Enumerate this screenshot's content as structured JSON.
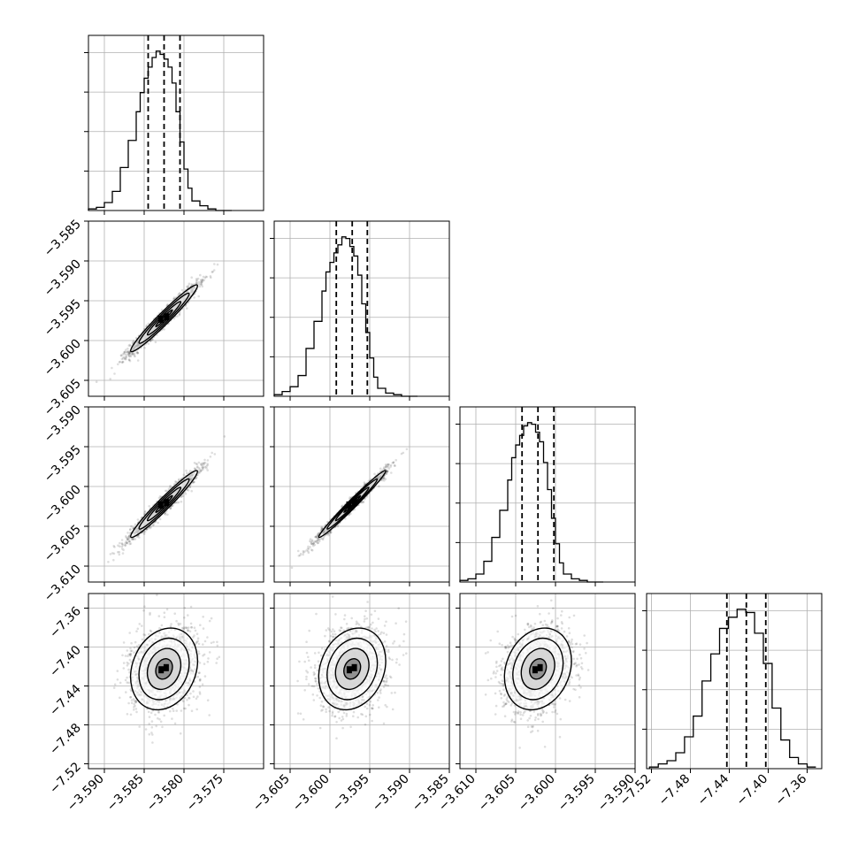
{
  "chart_data": {
    "type": "corner",
    "parameters": [
      {
        "range": [
          -3.592,
          -3.57
        ],
        "ticks": [
          -3.59,
          -3.585,
          -3.58,
          -3.575
        ],
        "tick_labels": [
          "−3.590",
          "−3.585",
          "−3.580",
          "−3.575"
        ],
        "quantiles": [
          -3.5845,
          -3.5825,
          -3.5805
        ],
        "hist_edges": [
          -3.592,
          -3.591,
          -3.59,
          -3.589,
          -3.588,
          -3.587,
          -3.586,
          -3.5855,
          -3.585,
          -3.5845,
          -3.584,
          -3.5835,
          -3.583,
          -3.5825,
          -3.582,
          -3.5815,
          -3.581,
          -3.5805,
          -3.58,
          -3.5795,
          -3.579,
          -3.578,
          -3.577,
          -3.576,
          -3.575,
          -3.574
        ],
        "hist_counts": [
          0.01,
          0.02,
          0.05,
          0.12,
          0.27,
          0.44,
          0.62,
          0.74,
          0.83,
          0.9,
          0.96,
          1.0,
          0.98,
          0.95,
          0.9,
          0.8,
          0.62,
          0.43,
          0.26,
          0.14,
          0.06,
          0.03,
          0.01,
          0.0,
          0.0
        ]
      },
      {
        "range": [
          -3.607,
          -3.585
        ],
        "ticks": [
          -3.605,
          -3.6,
          -3.595,
          -3.59,
          -3.585
        ],
        "tick_labels": [
          "−3.605",
          "−3.600",
          "−3.595",
          "−3.590",
          "−3.585"
        ],
        "y_tick_labels": [
          "−3.585",
          "−3.590",
          "−3.595",
          "−3.600",
          "−3.605"
        ],
        "quantiles": [
          -3.5992,
          -3.5972,
          -3.5953
        ],
        "hist_edges": [
          -3.607,
          -3.606,
          -3.605,
          -3.604,
          -3.603,
          -3.602,
          -3.601,
          -3.6005,
          -3.6,
          -3.5995,
          -3.599,
          -3.5985,
          -3.598,
          -3.5975,
          -3.597,
          -3.5965,
          -3.596,
          -3.5955,
          -3.595,
          -3.5945,
          -3.594,
          -3.593,
          -3.592,
          -3.591,
          -3.59,
          -3.589
        ],
        "hist_counts": [
          0.01,
          0.03,
          0.06,
          0.13,
          0.3,
          0.47,
          0.66,
          0.78,
          0.84,
          0.9,
          0.95,
          1.0,
          0.99,
          0.94,
          0.88,
          0.76,
          0.58,
          0.4,
          0.24,
          0.12,
          0.05,
          0.02,
          0.01,
          0.0,
          0.0
        ]
      },
      {
        "range": [
          -3.612,
          -3.59
        ],
        "ticks": [
          -3.61,
          -3.605,
          -3.6,
          -3.595,
          -3.59
        ],
        "tick_labels": [
          "−3.610",
          "−3.605",
          "−3.600",
          "−3.595",
          "−3.590"
        ],
        "y_tick_labels": [
          "−3.590",
          "−3.595",
          "−3.600",
          "−3.605",
          "−3.610"
        ],
        "quantiles": [
          -3.6042,
          -3.6022,
          -3.6002
        ],
        "hist_edges": [
          -3.612,
          -3.611,
          -3.61,
          -3.609,
          -3.608,
          -3.607,
          -3.606,
          -3.6055,
          -3.605,
          -3.6045,
          -3.604,
          -3.6035,
          -3.603,
          -3.6025,
          -3.602,
          -3.6015,
          -3.601,
          -3.6005,
          -3.6,
          -3.5995,
          -3.599,
          -3.598,
          -3.597,
          -3.596,
          -3.595,
          -3.594
        ],
        "hist_counts": [
          0.01,
          0.02,
          0.05,
          0.13,
          0.28,
          0.45,
          0.64,
          0.78,
          0.86,
          0.92,
          0.98,
          1.0,
          0.99,
          0.94,
          0.88,
          0.75,
          0.58,
          0.4,
          0.24,
          0.12,
          0.05,
          0.02,
          0.01,
          0.0,
          0.0
        ]
      },
      {
        "range": [
          -7.525,
          -7.345
        ],
        "ticks": [
          -7.52,
          -7.48,
          -7.44,
          -7.4,
          -7.36
        ],
        "tick_labels": [
          "−7.52",
          "−7.48",
          "−7.44",
          "−7.40",
          "−7.36"
        ],
        "y_tick_labels": [
          "−7.36",
          "−7.40",
          "−7.44",
          "−7.48",
          "−7.52"
        ],
        "quantiles": [
          -7.4425,
          -7.4225,
          -7.4025
        ],
        "hist_edges": [
          -7.522,
          -7.513,
          -7.504,
          -7.495,
          -7.486,
          -7.477,
          -7.468,
          -7.459,
          -7.45,
          -7.441,
          -7.432,
          -7.423,
          -7.414,
          -7.405,
          -7.396,
          -7.387,
          -7.378,
          -7.369,
          -7.36,
          -7.351
        ],
        "hist_counts": [
          0.01,
          0.03,
          0.05,
          0.1,
          0.2,
          0.33,
          0.55,
          0.72,
          0.88,
          0.95,
          1.0,
          0.98,
          0.85,
          0.66,
          0.38,
          0.18,
          0.07,
          0.03,
          0.01
        ]
      }
    ],
    "pairs": [
      {
        "row": 1,
        "col": 0,
        "center": [
          -3.5825,
          -3.5972
        ],
        "sx": 0.0021,
        "sy": 0.0021,
        "rho": 0.97
      },
      {
        "row": 2,
        "col": 0,
        "center": [
          -3.5825,
          -3.6022
        ],
        "sx": 0.0021,
        "sy": 0.0021,
        "rho": 0.97
      },
      {
        "row": 2,
        "col": 1,
        "center": [
          -3.5972,
          -3.6022
        ],
        "sx": 0.0021,
        "sy": 0.0021,
        "rho": 0.985
      },
      {
        "row": 3,
        "col": 0,
        "center": [
          -3.5825,
          -7.4225
        ],
        "sx": 0.0021,
        "sy": 0.021,
        "rho": 0.2
      },
      {
        "row": 3,
        "col": 1,
        "center": [
          -3.5972,
          -7.4225
        ],
        "sx": 0.0021,
        "sy": 0.021,
        "rho": 0.2
      },
      {
        "row": 3,
        "col": 2,
        "center": [
          -3.6022,
          -7.4225
        ],
        "sx": 0.0021,
        "sy": 0.021,
        "rho": 0.2
      }
    ],
    "contour_levels_sigma": [
      0.5,
      1.0,
      1.5,
      2.0
    ],
    "grid": true,
    "colors": {
      "axis": "#000000",
      "grid": "#b0b0b0",
      "points": "#000000",
      "fill_dark": "#000000"
    }
  }
}
